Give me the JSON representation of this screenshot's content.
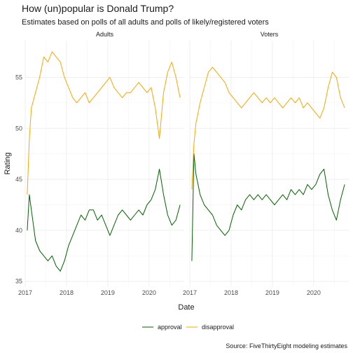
{
  "chart_data": {
    "type": "line",
    "title": "How (un)popular is Donald Trump?",
    "subtitle": "Estimates based on polls of all adults and polls of likely/registered voters",
    "xlabel": "Date",
    "ylabel": "Rating",
    "caption": "Source: FiveThirtyEight modeling estimates",
    "xlim": [
      2017.0,
      2020.85
    ],
    "ylim": [
      34.5,
      58.6
    ],
    "x_ticks": [
      "2017",
      "2018",
      "2019",
      "2020"
    ],
    "y_ticks": [
      35,
      40,
      45,
      50,
      55
    ],
    "grid": true,
    "legend_position": "bottom",
    "colors": {
      "approval": "#006400",
      "disapproval": "#FFA500"
    },
    "panels": [
      {
        "name": "Adults",
        "series": [
          {
            "name": "approval",
            "x": [
              2017.05,
              2017.1,
              2017.15,
              2017.25,
              2017.35,
              2017.45,
              2017.55,
              2017.65,
              2017.75,
              2017.85,
              2017.95,
              2018.05,
              2018.15,
              2018.25,
              2018.35,
              2018.45,
              2018.55,
              2018.65,
              2018.75,
              2018.85,
              2018.95,
              2019.05,
              2019.15,
              2019.25,
              2019.35,
              2019.45,
              2019.55,
              2019.65,
              2019.75,
              2019.85,
              2019.95,
              2020.05,
              2020.15,
              2020.25,
              2020.35,
              2020.45,
              2020.55,
              2020.65,
              2020.75
            ],
            "values": [
              40.0,
              43.5,
              42.0,
              39.0,
              38.0,
              37.5,
              37.0,
              37.5,
              36.5,
              36.0,
              37.0,
              38.5,
              39.5,
              40.5,
              41.5,
              41.0,
              42.0,
              42.0,
              41.0,
              41.5,
              40.5,
              39.5,
              40.5,
              41.5,
              42.0,
              41.5,
              41.0,
              41.5,
              42.0,
              41.5,
              42.5,
              43.0,
              44.0,
              46.0,
              43.5,
              41.5,
              40.5,
              41.0,
              42.5
            ]
          },
          {
            "name": "disapproval",
            "x": [
              2017.05,
              2017.1,
              2017.15,
              2017.25,
              2017.35,
              2017.45,
              2017.55,
              2017.65,
              2017.75,
              2017.85,
              2017.95,
              2018.05,
              2018.15,
              2018.25,
              2018.35,
              2018.45,
              2018.55,
              2018.65,
              2018.75,
              2018.85,
              2018.95,
              2019.05,
              2019.15,
              2019.25,
              2019.35,
              2019.45,
              2019.55,
              2019.65,
              2019.75,
              2019.85,
              2019.95,
              2020.05,
              2020.15,
              2020.25,
              2020.35,
              2020.45,
              2020.55,
              2020.65,
              2020.75
            ],
            "values": [
              43.5,
              49.0,
              52.0,
              53.5,
              55.0,
              57.0,
              56.5,
              57.5,
              57.0,
              56.5,
              55.0,
              54.0,
              53.0,
              52.5,
              53.0,
              53.5,
              52.5,
              53.0,
              53.5,
              54.0,
              54.5,
              55.0,
              54.0,
              53.5,
              53.0,
              53.5,
              53.5,
              54.0,
              54.5,
              54.0,
              53.5,
              54.0,
              52.0,
              49.0,
              53.5,
              55.5,
              56.5,
              55.0,
              53.0
            ]
          }
        ]
      },
      {
        "name": "Voters",
        "series": [
          {
            "name": "approval",
            "x": [
              2017.05,
              2017.1,
              2017.15,
              2017.25,
              2017.35,
              2017.45,
              2017.55,
              2017.65,
              2017.75,
              2017.85,
              2017.95,
              2018.05,
              2018.15,
              2018.25,
              2018.35,
              2018.45,
              2018.55,
              2018.65,
              2018.75,
              2018.85,
              2018.95,
              2019.05,
              2019.15,
              2019.25,
              2019.35,
              2019.45,
              2019.55,
              2019.65,
              2019.75,
              2019.85,
              2019.95,
              2020.05,
              2020.15,
              2020.25,
              2020.35,
              2020.45,
              2020.55,
              2020.65,
              2020.75
            ],
            "values": [
              37.0,
              47.5,
              45.5,
              43.5,
              42.5,
              42.0,
              41.5,
              40.5,
              40.0,
              39.5,
              40.0,
              41.5,
              42.5,
              42.0,
              43.0,
              43.5,
              43.0,
              43.5,
              43.0,
              43.5,
              43.0,
              42.5,
              43.0,
              43.5,
              43.0,
              44.0,
              43.5,
              44.0,
              43.5,
              44.5,
              44.0,
              44.5,
              45.5,
              46.0,
              43.5,
              42.0,
              41.0,
              43.0,
              44.5
            ]
          },
          {
            "name": "disapproval",
            "x": [
              2017.05,
              2017.1,
              2017.15,
              2017.25,
              2017.35,
              2017.45,
              2017.55,
              2017.65,
              2017.75,
              2017.85,
              2017.95,
              2018.05,
              2018.15,
              2018.25,
              2018.35,
              2018.45,
              2018.55,
              2018.65,
              2018.75,
              2018.85,
              2018.95,
              2019.05,
              2019.15,
              2019.25,
              2019.35,
              2019.45,
              2019.55,
              2019.65,
              2019.75,
              2019.85,
              2019.95,
              2020.05,
              2020.15,
              2020.25,
              2020.35,
              2020.45,
              2020.55,
              2020.65,
              2020.75
            ],
            "values": [
              44.0,
              48.5,
              50.5,
              52.5,
              54.0,
              55.5,
              56.0,
              55.5,
              55.0,
              54.5,
              53.5,
              53.0,
              52.5,
              52.0,
              52.5,
              53.0,
              53.5,
              53.0,
              52.5,
              53.0,
              52.5,
              53.0,
              52.5,
              52.0,
              52.5,
              53.0,
              52.5,
              53.0,
              52.0,
              52.5,
              52.0,
              51.5,
              51.0,
              52.0,
              54.0,
              55.5,
              55.0,
              53.0,
              52.0
            ]
          }
        ]
      }
    ]
  }
}
